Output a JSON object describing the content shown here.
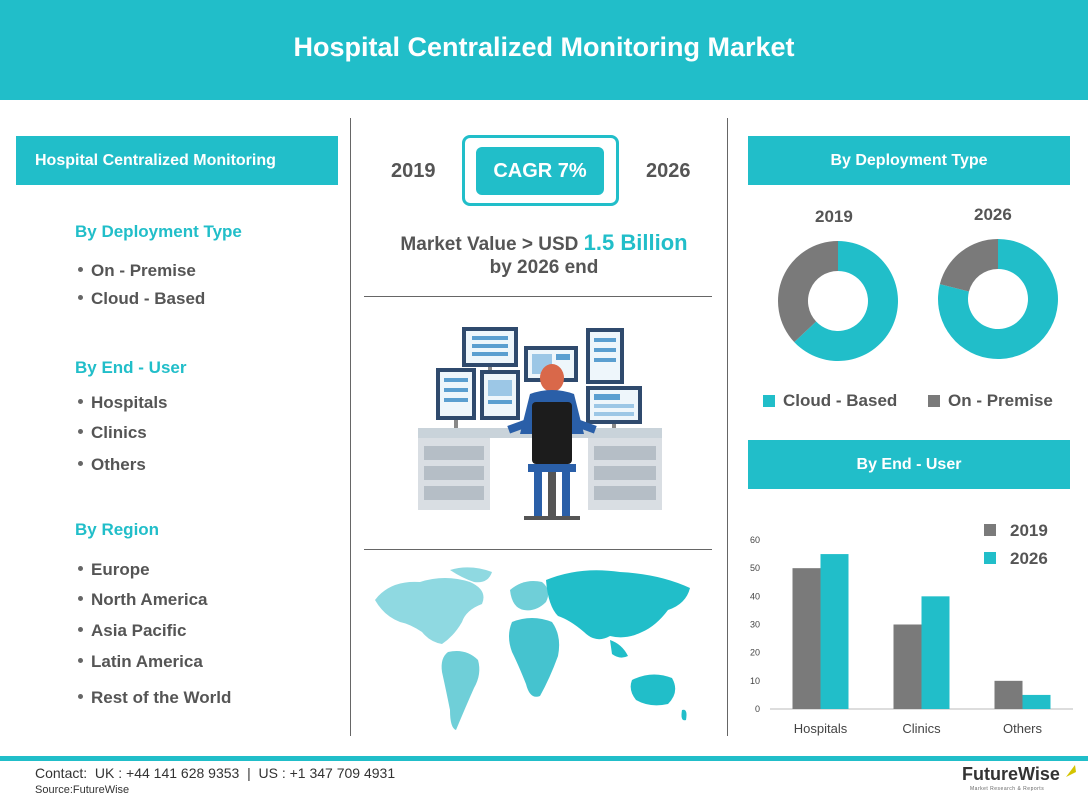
{
  "header": {
    "title": "Hospital Centralized Monitoring Market"
  },
  "left": {
    "box_title": "Hospital Centralized Monitoring",
    "segments": [
      {
        "heading": "By Deployment Type",
        "items": [
          "On - Premise",
          "Cloud - Based"
        ]
      },
      {
        "heading": "By End - User",
        "items": [
          "Hospitals",
          "Clinics",
          "Others"
        ]
      },
      {
        "heading": "By Region",
        "items": [
          "Europe",
          "North America",
          "Asia Pacific",
          "Latin America",
          "Rest of the World"
        ]
      }
    ]
  },
  "center": {
    "year_start": "2019",
    "year_end": "2026",
    "cagr": "CAGR 7%",
    "market_line1_prefix": "Market Value > USD",
    "market_value": "1.5 Billion",
    "market_line2": "by 2026 end",
    "illustration_icon": "operator-monitoring-desk-icon",
    "map_icon": "world-map-icon"
  },
  "colors": {
    "teal": "#21bec9",
    "gray": "#7a7a7a"
  },
  "chart_data": [
    {
      "type": "pie",
      "title": "By Deployment Type",
      "donuts": [
        {
          "label": "2019",
          "slices": [
            {
              "name": "Cloud - Based",
              "value": 63
            },
            {
              "name": "On - Premise",
              "value": 37
            }
          ]
        },
        {
          "label": "2026",
          "slices": [
            {
              "name": "Cloud - Based",
              "value": 79
            },
            {
              "name": "On - Premise",
              "value": 21
            }
          ]
        }
      ],
      "legend": [
        "Cloud - Based",
        "On - Premise"
      ]
    },
    {
      "type": "bar",
      "title": "By End - User",
      "categories": [
        "Hospitals",
        "Clinics",
        "Others"
      ],
      "series": [
        {
          "name": "2019",
          "values": [
            50,
            30,
            10
          ]
        },
        {
          "name": "2026",
          "values": [
            55,
            40,
            5
          ]
        }
      ],
      "ylim": [
        0,
        60
      ],
      "yticks": [
        "0",
        "10",
        "20",
        "30",
        "40",
        "50",
        "60"
      ],
      "legend_position": "top-right"
    }
  ],
  "footer": {
    "contact": "Contact:  UK : +44 141 628 9353  |  US : +1 347 709 4931",
    "source": "Source:FutureWise",
    "brand": "FutureWise",
    "brand_tagline": "Market Research & Reports"
  }
}
